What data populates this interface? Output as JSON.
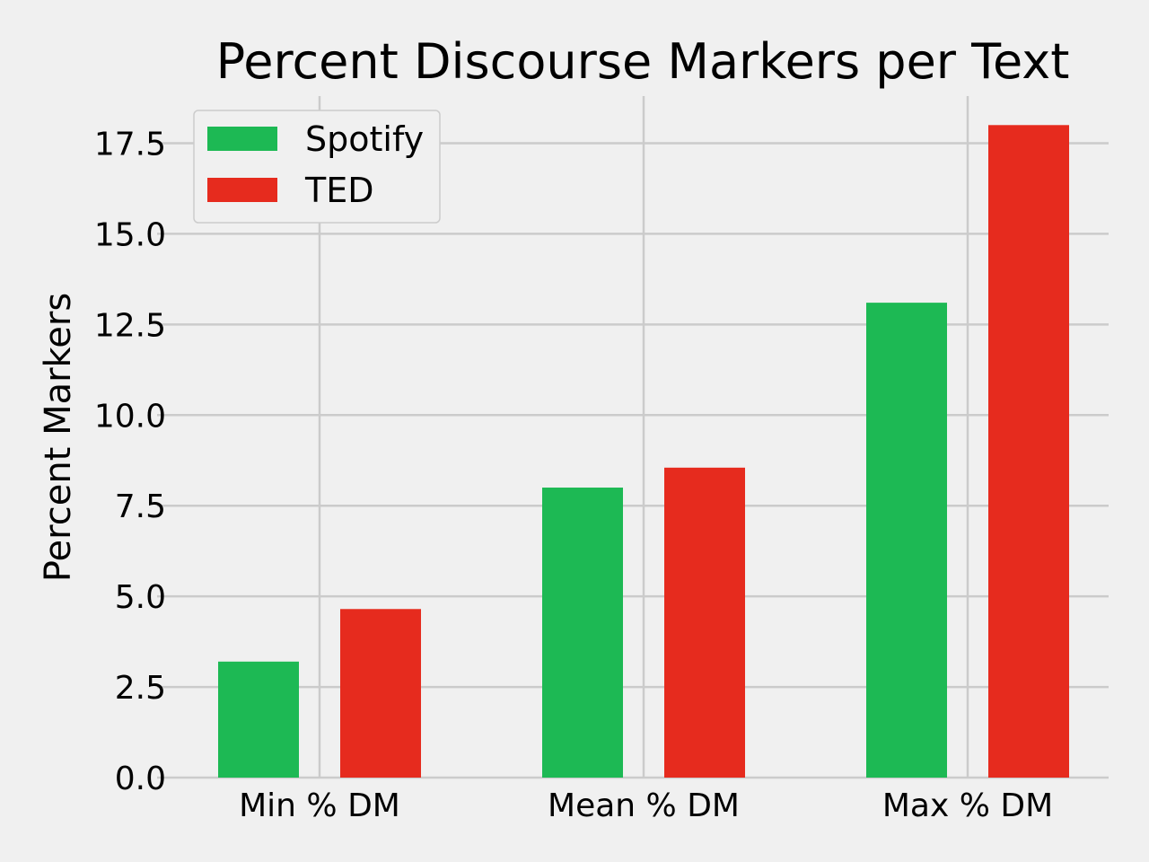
{
  "chart_data": {
    "type": "bar",
    "title": "Percent Discourse Markers per Text",
    "ylabel": "Percent Markers",
    "xlabel": "",
    "categories": [
      "Min % DM",
      "Mean % DM",
      "Max % DM"
    ],
    "series": [
      {
        "name": "Spotify",
        "color": "#1db954",
        "values": [
          3.2,
          8.0,
          13.1
        ]
      },
      {
        "name": "TED",
        "color": "#e62b1e",
        "values": [
          4.65,
          8.55,
          18.0
        ]
      }
    ],
    "ylim": [
      0,
      18.8
    ],
    "yticks": [
      0.0,
      2.5,
      5.0,
      7.5,
      10.0,
      12.5,
      15.0,
      17.5
    ],
    "ytick_labels": [
      "0.0",
      "2.5",
      "5.0",
      "7.5",
      "10.0",
      "12.5",
      "15.0",
      "17.5"
    ],
    "grid": true,
    "legend": "top-left"
  }
}
